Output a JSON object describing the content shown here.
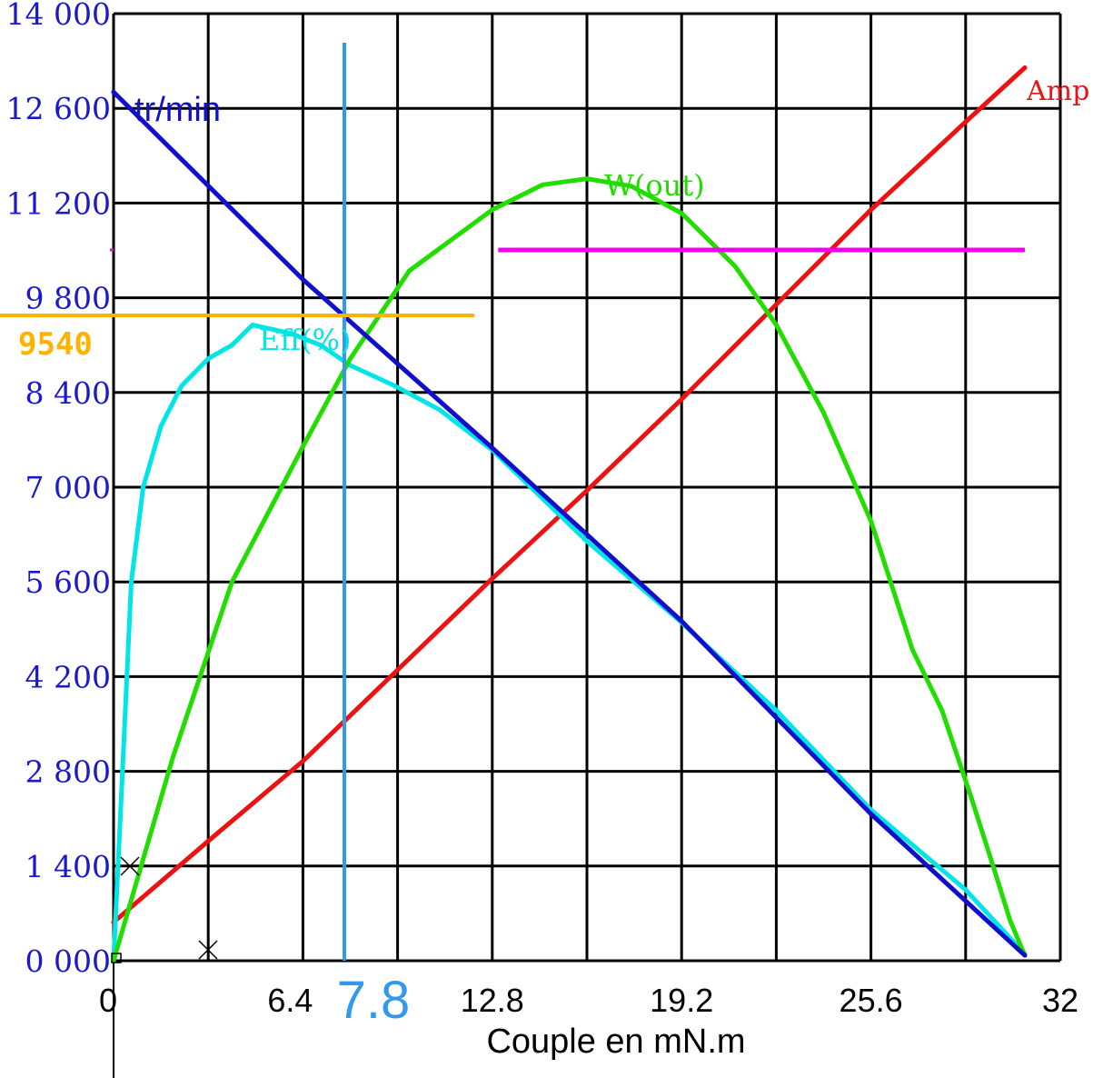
{
  "chart_data": {
    "type": "line",
    "xlabel": "Couple en mN.m",
    "x_ticks": [
      "0",
      "6.4",
      "12.8",
      "19.2",
      "25.6",
      "32"
    ],
    "y_ticks": [
      "0 000",
      "1 400",
      "2 800",
      "4 200",
      "5 600",
      "7 000",
      "8 400",
      "9 800",
      "11 200",
      "12 600",
      "14 000"
    ],
    "xlim": [
      0,
      32
    ],
    "ylim": [
      0,
      14000
    ],
    "grid": true,
    "series": [
      {
        "name": "tr/min",
        "color": "#1010cc",
        "x": [
          0,
          6.4,
          12.8,
          19.2,
          25.6,
          30.8
        ],
        "y": [
          12840,
          10070,
          7580,
          5020,
          2170,
          80
        ]
      },
      {
        "name": "Eff(%)",
        "color": "#00e5e5",
        "x": [
          0,
          0.3,
          0.6,
          1.0,
          1.6,
          2.3,
          3.2,
          4.0,
          4.7,
          6.0,
          7.0,
          8.0,
          9.5,
          11.0,
          12.8,
          16.0,
          19.2,
          22.4,
          25.6,
          28.8,
          30.8
        ],
        "y": [
          0,
          2800,
          5600,
          7000,
          7900,
          8500,
          8900,
          9100,
          9400,
          9270,
          9100,
          8800,
          8500,
          8150,
          7550,
          6200,
          5000,
          3700,
          2230,
          1050,
          100
        ]
      },
      {
        "name": "W(out)",
        "color": "#22dd00",
        "x": [
          0,
          2.0,
          4.0,
          6.4,
          8.0,
          10.0,
          12.8,
          14.5,
          16.0,
          17.5,
          19.2,
          21.0,
          22.4,
          24.0,
          25.6,
          27.0,
          28.0,
          29.0,
          29.8,
          30.3,
          30.8
        ],
        "y": [
          0,
          3000,
          5600,
          7600,
          8900,
          10200,
          11100,
          11470,
          11560,
          11450,
          11050,
          10270,
          9400,
          8100,
          6500,
          4600,
          3700,
          2400,
          1300,
          600,
          80
        ]
      },
      {
        "name": "Amp",
        "color": "#ee1111",
        "x": [
          0,
          3.2,
          6.4,
          9.6,
          12.8,
          16.0,
          19.2,
          22.4,
          25.6,
          28.8,
          30.8
        ],
        "y": [
          570,
          1770,
          2950,
          4300,
          5650,
          6950,
          8300,
          9700,
          11100,
          12400,
          13200
        ]
      }
    ],
    "annotations": [
      {
        "label": "7.8",
        "x": 7.8,
        "color": "#3399ee"
      },
      {
        "label": "9540",
        "y": 9540,
        "color": "#ffb300"
      }
    ]
  }
}
